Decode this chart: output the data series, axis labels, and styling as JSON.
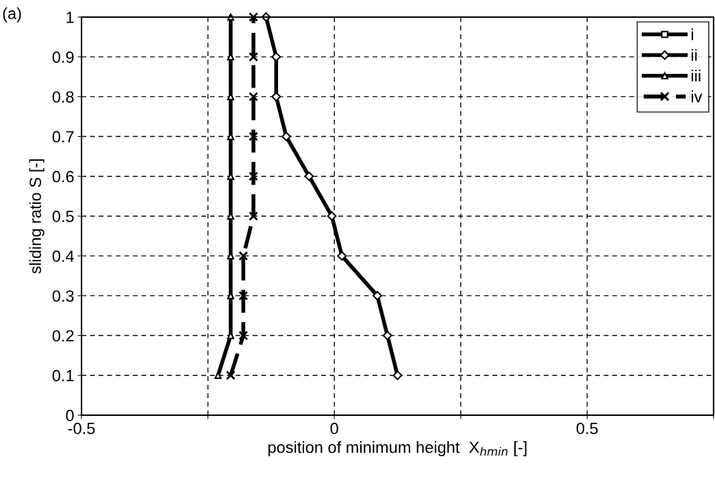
{
  "chart_data": {
    "type": "line",
    "xlabel": "position of minimum height  X$_{hmin}$ [-]",
    "ylabel": "sliding ratio S [-]",
    "annotations": [
      "(a)"
    ],
    "series": [
      {
        "name": "i",
        "color": "#000000",
        "marker": "square",
        "line_style": "solid",
        "x": [
          null,
          null,
          null,
          null,
          null,
          null,
          null,
          null,
          null,
          null
        ],
        "values": [
          null,
          null,
          null,
          null,
          null,
          null,
          null,
          null,
          null,
          null
        ]
      },
      {
        "name": "ii",
        "color": "#000000",
        "marker": "diamond",
        "line_style": "solid",
        "x": [
          0.125,
          0.105,
          0.085,
          0.015,
          -0.005,
          -0.05,
          -0.095,
          -0.115,
          -0.115,
          -0.135
        ],
        "values": [
          0.1,
          0.2,
          0.3,
          0.4,
          0.5,
          0.6,
          0.7,
          0.8,
          0.9,
          1
        ]
      },
      {
        "name": "iii",
        "color": "#000000",
        "marker": "triangle",
        "line_style": "solid",
        "x": [
          -0.23,
          -0.205,
          -0.205,
          -0.205,
          -0.205,
          -0.205,
          -0.205,
          -0.205,
          -0.205,
          -0.205
        ],
        "values": [
          0.1,
          0.2,
          0.3,
          0.4,
          0.5,
          0.6,
          0.7,
          0.8,
          0.9,
          1
        ]
      },
      {
        "name": "iv",
        "color": "#000000",
        "marker": "cross",
        "line_style": "dashed",
        "x": [
          -0.205,
          -0.18,
          -0.18,
          -0.18,
          -0.16,
          -0.16,
          -0.16,
          -0.16,
          -0.16,
          -0.16
        ],
        "values": [
          0.1,
          0.2,
          0.3,
          0.4,
          0.5,
          0.6,
          0.7,
          0.8,
          0.9,
          1
        ]
      }
    ],
    "xlim": [
      -0.5,
      0.75
    ],
    "xticks": [
      -0.5,
      {
        "value": -0.25,
        "label": null
      },
      0,
      {
        "value": 0.25,
        "label": null
      },
      0.5,
      {
        "value": 0.75,
        "label": null
      }
    ],
    "ylim": [
      0,
      1
    ],
    "yticks": [
      0,
      0.1,
      0.2,
      0.3,
      0.4,
      0.5,
      0.6,
      0.7,
      0.8,
      0.9,
      1
    ],
    "grid": true,
    "legend": "top right"
  }
}
